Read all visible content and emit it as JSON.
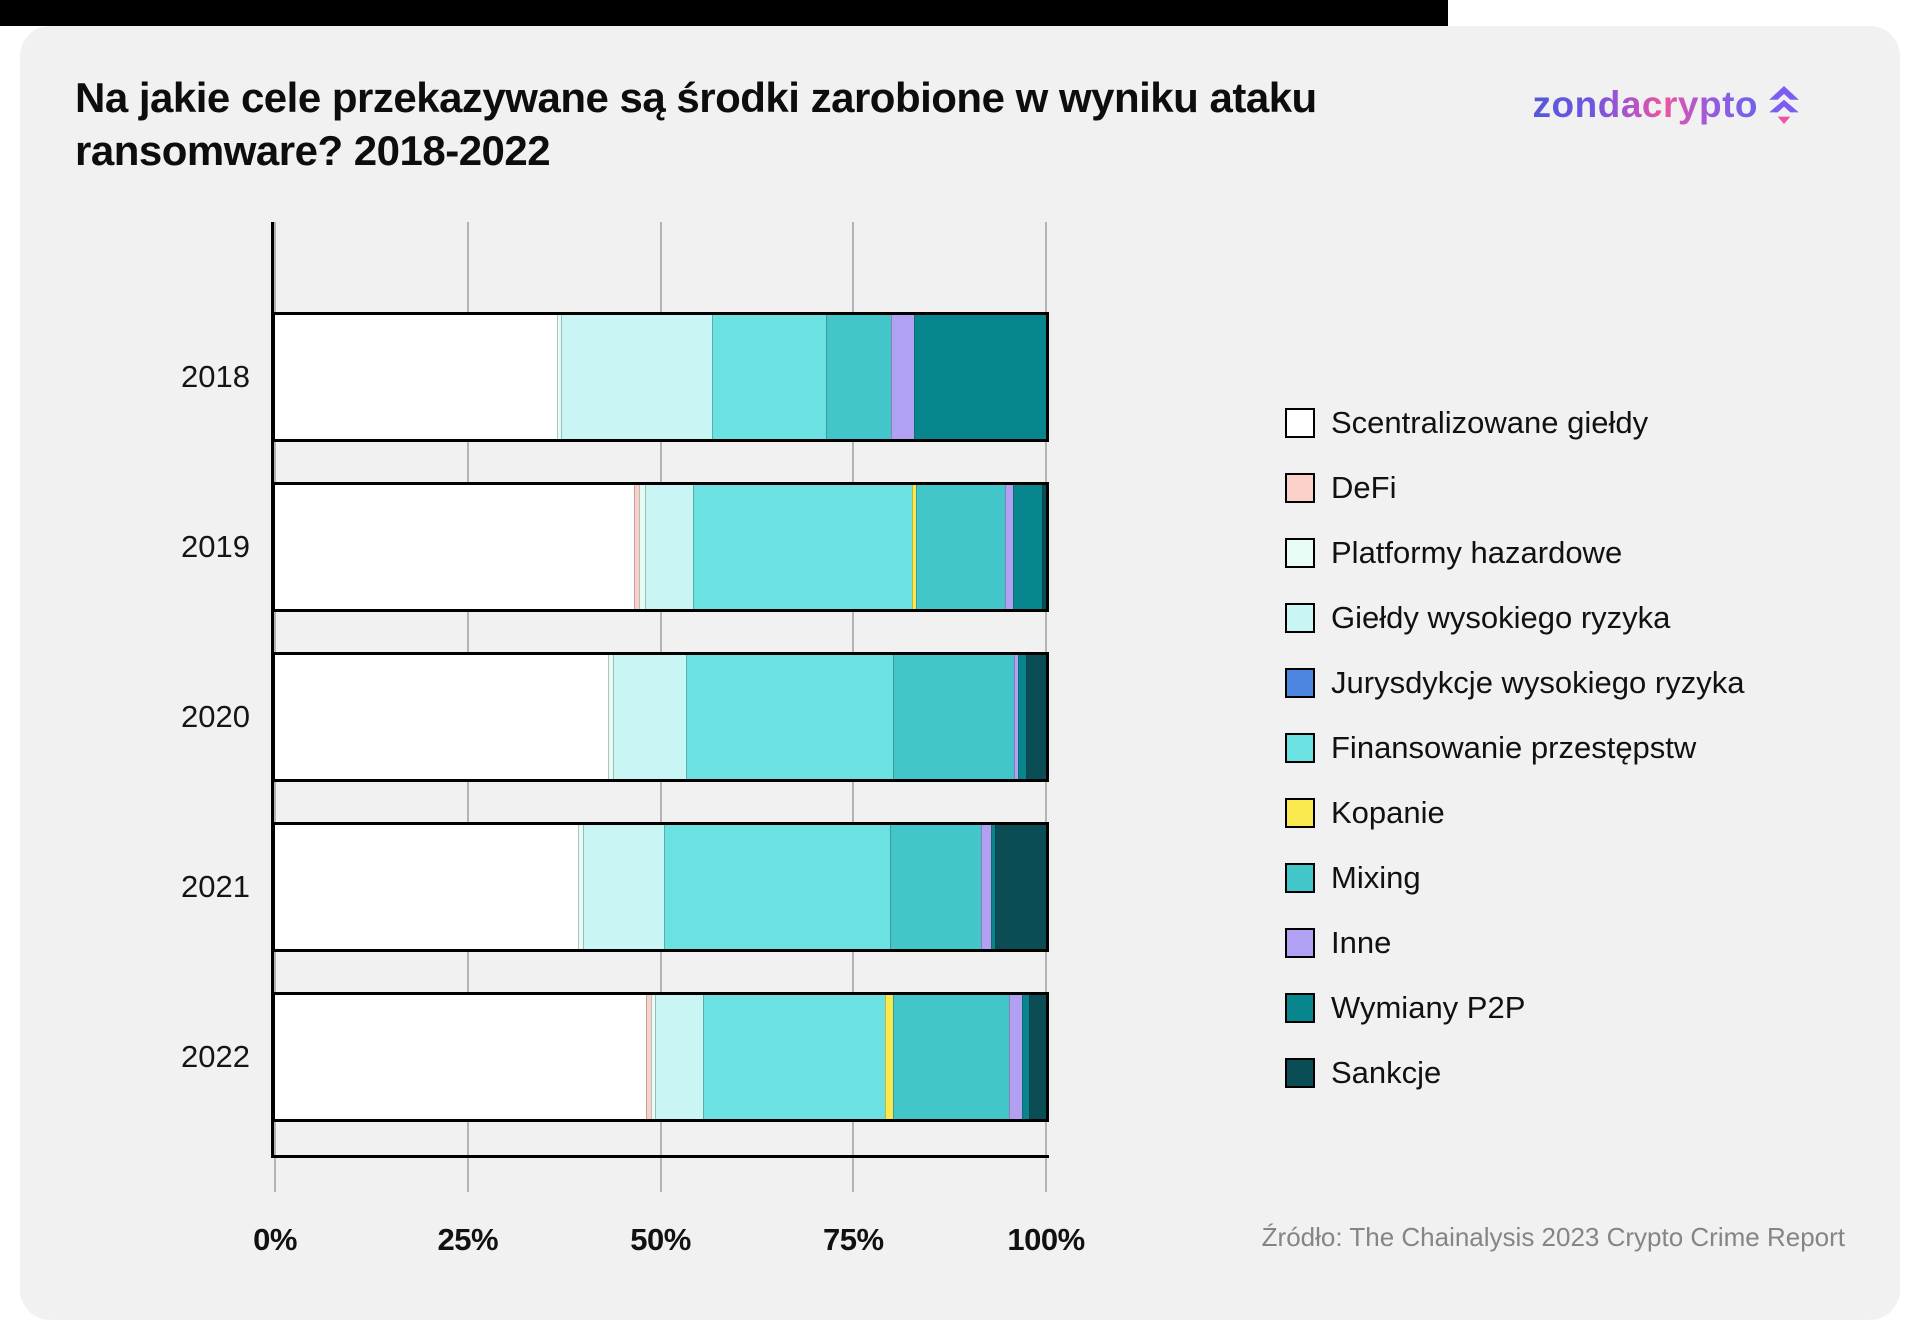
{
  "page": {
    "title_lines": [
      "Na jakie cele przekazywane są środki zarobione w wyniku ataku",
      "ransomware? 2018-2022"
    ],
    "source": "Źródło: The Chainalysis 2023 Crypto Crime Report"
  },
  "logo": {
    "text": "zondacrypto",
    "brand_colors": [
      "#5559d8",
      "#ef549f",
      "#6e62ee"
    ],
    "icon": "spruce-tree-icon"
  },
  "chart_data": {
    "type": "bar",
    "orientation": "horizontal",
    "stacked": true,
    "categories": [
      "2018",
      "2019",
      "2020",
      "2021",
      "2022"
    ],
    "x_tick_labels": [
      "0%",
      "25%",
      "50%",
      "75%",
      "100%"
    ],
    "xlim": [
      0,
      100
    ],
    "grid": true,
    "legend_position": "right",
    "series": [
      {
        "name": "Scentralizowane giełdy",
        "color": "#ffffff",
        "values": [
          36.7,
          46.6,
          43.0,
          39.4,
          48.2
        ]
      },
      {
        "name": "DeFi",
        "color": "#fbd0c8",
        "values": [
          0,
          0.5,
          0,
          0,
          0.5
        ]
      },
      {
        "name": "Platformy hazardowe",
        "color": "#e6fcf5",
        "values": [
          0.4,
          0.7,
          0.6,
          0.5,
          0.3
        ]
      },
      {
        "name": "Giełdy wysokiego ryzyka",
        "color": "#c9f5f4",
        "values": [
          19.5,
          6.1,
          9.2,
          10.4,
          6.1
        ]
      },
      {
        "name": "Jurysdykcje wysokiego ryzyka",
        "color": "#4c86e0",
        "values": [
          0,
          0,
          0,
          0,
          0
        ]
      },
      {
        "name": "Finansowanie przestępstw",
        "color": "#6ce1e2",
        "values": [
          14.8,
          28.3,
          26.7,
          29.2,
          23.6
        ]
      },
      {
        "name": "Kopanie",
        "color": "#fae94e",
        "values": [
          0,
          0.4,
          0,
          0,
          0.9
        ]
      },
      {
        "name": "Mixing",
        "color": "#42c6c9",
        "values": [
          8.3,
          11.5,
          15.4,
          11.7,
          14.9
        ]
      },
      {
        "name": "Inne",
        "color": "#b2a1f3",
        "values": [
          2.9,
          0.9,
          0.4,
          1.2,
          1.6
        ]
      },
      {
        "name": "Wymiany P2P",
        "color": "#07868e",
        "values": [
          17.0,
          3.6,
          0.9,
          0.4,
          0.7
        ]
      },
      {
        "name": "Sankcje",
        "color": "#0b4d55",
        "values": [
          0,
          0.4,
          2.5,
          6.5,
          2.1
        ]
      }
    ]
  }
}
